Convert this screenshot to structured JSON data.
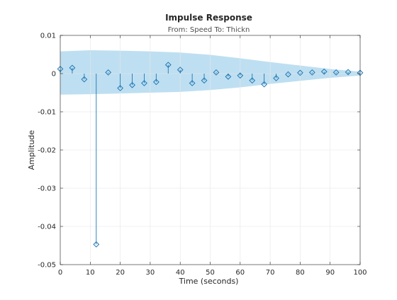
{
  "chart_data": {
    "type": "stem",
    "title": "Impulse Response",
    "subtitle": "From: Speed  To: Thickn",
    "xlabel": "Time (seconds)",
    "ylabel": "Amplitude",
    "xlim": [
      0,
      100
    ],
    "ylim": [
      -0.05,
      0.01
    ],
    "grid": true,
    "x_ticks": [
      "0",
      "10",
      "20",
      "30",
      "40",
      "50",
      "60",
      "70",
      "80",
      "90",
      "100"
    ],
    "y_ticks": [
      "0.01",
      "0",
      "-0.01",
      "-0.02",
      "-0.03",
      "-0.04",
      "-0.05"
    ],
    "colors": {
      "stem": "#1f77b4",
      "band": "#b3d9ee",
      "grid": "#e6e6e6",
      "axis": "#262626"
    },
    "series": [
      {
        "x": [
          0,
          4,
          8,
          12,
          16,
          20,
          24,
          28,
          32,
          36,
          40,
          44,
          48,
          52,
          56,
          60,
          64,
          68,
          72,
          76,
          80,
          84,
          88,
          92,
          96,
          100
        ],
        "values": [
          0.0012,
          0.0015,
          -0.0015,
          -0.0447,
          0.0003,
          -0.0038,
          -0.003,
          -0.0025,
          -0.0022,
          0.0023,
          0.001,
          -0.0025,
          -0.0018,
          0.0003,
          -0.0008,
          -0.0005,
          -0.0018,
          -0.0028,
          -0.0012,
          -0.0002,
          0.0002,
          0.0003,
          0.0005,
          0.0003,
          0.0004,
          0.0002
        ]
      }
    ],
    "confidence_band": {
      "x": [
        0,
        10,
        20,
        30,
        40,
        50,
        60,
        70,
        80,
        90,
        100
      ],
      "upper": [
        0.0058,
        0.0061,
        0.006,
        0.0058,
        0.0055,
        0.0049,
        0.004,
        0.003,
        0.0021,
        0.0012,
        0.0005
      ],
      "lower": [
        -0.0055,
        -0.0054,
        -0.0052,
        -0.005,
        -0.0048,
        -0.0043,
        -0.0036,
        -0.0027,
        -0.0019,
        -0.0011,
        -0.0005
      ]
    }
  }
}
